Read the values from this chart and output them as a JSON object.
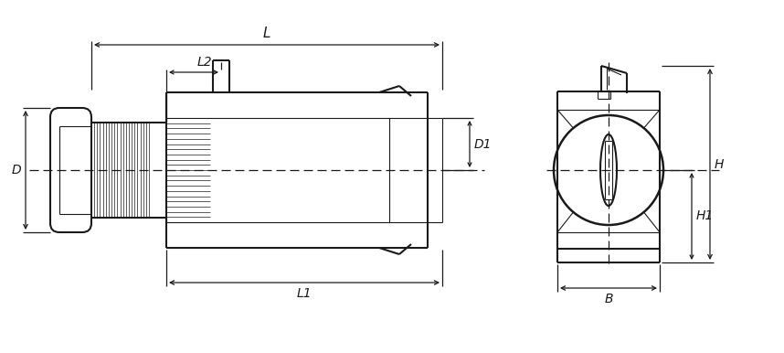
{
  "bg_color": "#ffffff",
  "line_color": "#1a1a1a",
  "lw_main": 1.5,
  "lw_thin": 0.8,
  "lw_dim": 0.9,
  "fig_w": 8.58,
  "fig_h": 3.86,
  "labels": {
    "L": "L",
    "L1": "L1",
    "L2": "L2",
    "D": "D",
    "D1": "D1",
    "H": "H",
    "H1": "H1",
    "B": "B"
  }
}
